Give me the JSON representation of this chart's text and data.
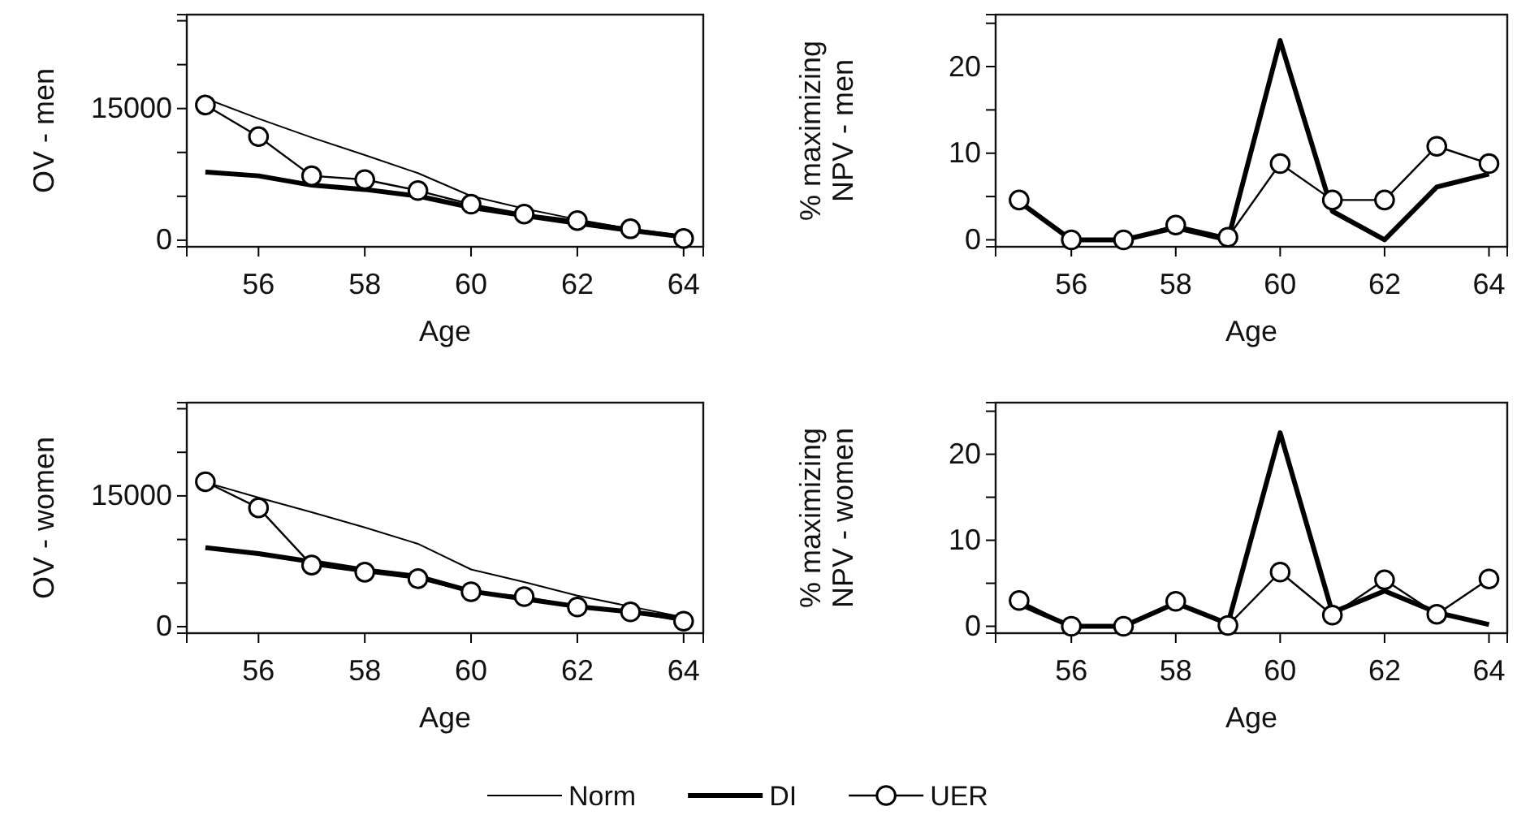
{
  "chart_data": [
    {
      "type": "line",
      "xlabel": "Age",
      "ylabel": "OV - men",
      "x": [
        55,
        56,
        57,
        58,
        59,
        60,
        61,
        62,
        63,
        64
      ],
      "xlim": [
        54.65,
        64.37
      ],
      "xticks": [
        56,
        58,
        60,
        62,
        64
      ],
      "ylim": [
        -750,
        25700
      ],
      "yticks": [
        0,
        {
          "value": 5000,
          "label": null
        },
        {
          "value": 10000,
          "label": null
        },
        15000,
        {
          "value": 20000,
          "label": null
        },
        {
          "value": 25000,
          "label": null
        }
      ],
      "legend": "bottom",
      "series": [
        {
          "name": "Norm",
          "color": "#000000",
          "marker": "none",
          "values": [
            16150,
            13850,
            11700,
            9700,
            7640,
            5030,
            3600,
            2360,
            1300,
            500
          ]
        },
        {
          "name": "DI",
          "color": "#000000",
          "marker": "none",
          "values": [
            7760,
            7330,
            6270,
            5780,
            5030,
            3730,
            2800,
            1930,
            1120,
            370
          ]
        },
        {
          "name": "UER",
          "color": "#000000",
          "marker": "circle",
          "values": [
            15400,
            11800,
            7330,
            6900,
            5650,
            4100,
            2980,
            2240,
            1300,
            190
          ]
        }
      ]
    },
    {
      "type": "line",
      "xlabel": "Age",
      "ylabel": "% maximizing\nNPV - men",
      "x": [
        55,
        56,
        57,
        58,
        59,
        60,
        61,
        62,
        63,
        64
      ],
      "xlim": [
        54.55,
        64.35
      ],
      "xticks": [
        56,
        58,
        60,
        62,
        64
      ],
      "ylim": [
        -0.8,
        26
      ],
      "yticks": [
        0,
        {
          "value": 5,
          "label": null
        },
        10,
        {
          "value": 15,
          "label": null
        },
        20,
        {
          "value": 25,
          "label": null
        }
      ],
      "legend": "bottom",
      "series": [
        {
          "name": "DI",
          "color": "#000000",
          "marker": "none",
          "values": [
            4.4,
            0,
            0,
            1.4,
            0,
            23,
            3.3,
            0,
            6.1,
            7.6
          ]
        },
        {
          "name": "UER",
          "color": "#000000",
          "marker": "circle",
          "values": [
            4.6,
            0,
            0,
            1.7,
            0.3,
            8.8,
            4.6,
            4.6,
            10.8,
            8.8
          ]
        }
      ]
    },
    {
      "type": "line",
      "xlabel": "Age",
      "ylabel": "OV - women",
      "x": [
        55,
        56,
        57,
        58,
        59,
        60,
        61,
        62,
        63,
        64
      ],
      "xlim": [
        54.65,
        64.37
      ],
      "xticks": [
        56,
        58,
        60,
        62,
        64
      ],
      "ylim": [
        -750,
        25700
      ],
      "yticks": [
        0,
        {
          "value": 5000,
          "label": null
        },
        {
          "value": 10000,
          "label": null
        },
        15000,
        {
          "value": 20000,
          "label": null
        },
        {
          "value": 25000,
          "label": null
        }
      ],
      "legend": "bottom",
      "series": [
        {
          "name": "Norm",
          "color": "#000000",
          "marker": "none",
          "values": [
            16560,
            14810,
            13125,
            11375,
            9500,
            6560,
            5125,
            3560,
            2310,
            1060
          ]
        },
        {
          "name": "DI",
          "color": "#000000",
          "marker": "none",
          "values": [
            9060,
            8375,
            7440,
            6500,
            5750,
            4060,
            3190,
            2310,
            1690,
            940
          ]
        },
        {
          "name": "UER",
          "color": "#000000",
          "marker": "circle",
          "values": [
            16625,
            13625,
            7060,
            6250,
            5500,
            4000,
            3440,
            2250,
            1690,
            625
          ]
        }
      ]
    },
    {
      "type": "line",
      "xlabel": "Age",
      "ylabel": "% maximizing\nNPV - women",
      "x": [
        55,
        56,
        57,
        58,
        59,
        60,
        61,
        62,
        63,
        64
      ],
      "xlim": [
        54.55,
        64.35
      ],
      "xticks": [
        56,
        58,
        60,
        62,
        64
      ],
      "ylim": [
        -0.8,
        26
      ],
      "yticks": [
        0,
        {
          "value": 5,
          "label": null
        },
        10,
        {
          "value": 15,
          "label": null
        },
        20,
        {
          "value": 25,
          "label": null
        }
      ],
      "legend": "bottom",
      "series": [
        {
          "name": "DI",
          "color": "#000000",
          "marker": "none",
          "values": [
            2.6,
            0,
            0,
            2.7,
            0.3,
            22.5,
            1.6,
            4.1,
            1.6,
            0.2
          ]
        },
        {
          "name": "UER",
          "color": "#000000",
          "marker": "circle",
          "values": [
            3.0,
            0,
            0,
            2.9,
            0.1,
            6.3,
            1.3,
            5.4,
            1.4,
            5.5
          ]
        }
      ]
    }
  ]
}
